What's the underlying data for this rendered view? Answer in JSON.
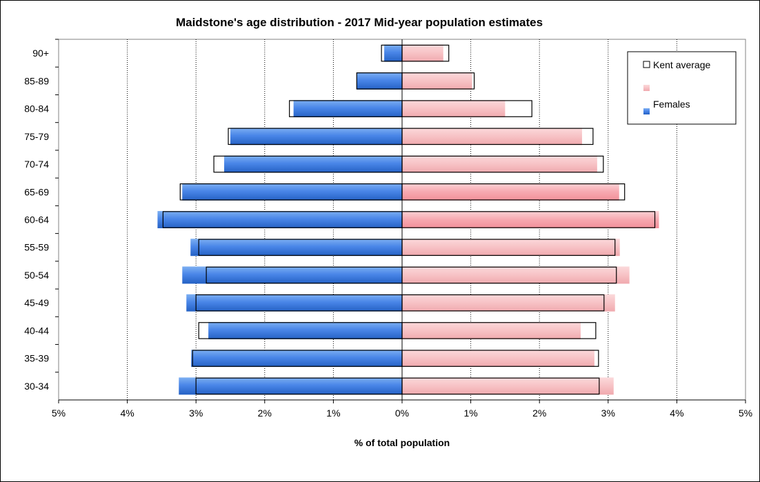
{
  "chart_data": {
    "type": "bar",
    "orientation": "horizontal",
    "title": "Maidstone's age distribution - 2017 Mid-year population estimates",
    "xlabel": "% of total population",
    "ylabel": "",
    "categories": [
      "90+",
      "85-89",
      "80-84",
      "75-79",
      "70-74",
      "65-69",
      "60-64",
      "55-59",
      "50-54",
      "45-49",
      "40-44",
      "35-39",
      "30-34"
    ],
    "x_tick_labels": [
      "5%",
      "4%",
      "3%",
      "2%",
      "1%",
      "0%",
      "1%",
      "2%",
      "3%",
      "4%",
      "5%"
    ],
    "xlim": [
      -5,
      5
    ],
    "grid": "vertical dotted",
    "legend_position": "top-right",
    "series": [
      {
        "name": "Females",
        "side": "left",
        "color": "#4a86e8",
        "values": [
          0.26,
          0.66,
          1.58,
          2.5,
          2.59,
          3.2,
          3.56,
          3.08,
          3.2,
          3.14,
          2.82,
          3.07,
          3.25
        ]
      },
      {
        "name": "",
        "side": "right",
        "color": "#f7c2c5",
        "values": [
          0.6,
          1.02,
          1.5,
          2.62,
          2.84,
          3.16,
          3.74,
          3.17,
          3.31,
          3.1,
          2.6,
          2.8,
          3.08
        ]
      },
      {
        "name": "Kent average",
        "side": "left",
        "style": "outline",
        "values": [
          0.3,
          0.66,
          1.64,
          2.53,
          2.74,
          3.23,
          3.48,
          2.96,
          2.85,
          3.0,
          2.96,
          3.05,
          3.0
        ]
      },
      {
        "name": "Kent average",
        "side": "right",
        "style": "outline",
        "values": [
          0.68,
          1.05,
          1.89,
          2.78,
          2.93,
          3.24,
          3.68,
          3.1,
          3.12,
          2.94,
          2.82,
          2.86,
          2.87
        ]
      }
    ],
    "legend": {
      "kent": "Kent average",
      "males": "",
      "females": "Females"
    }
  }
}
